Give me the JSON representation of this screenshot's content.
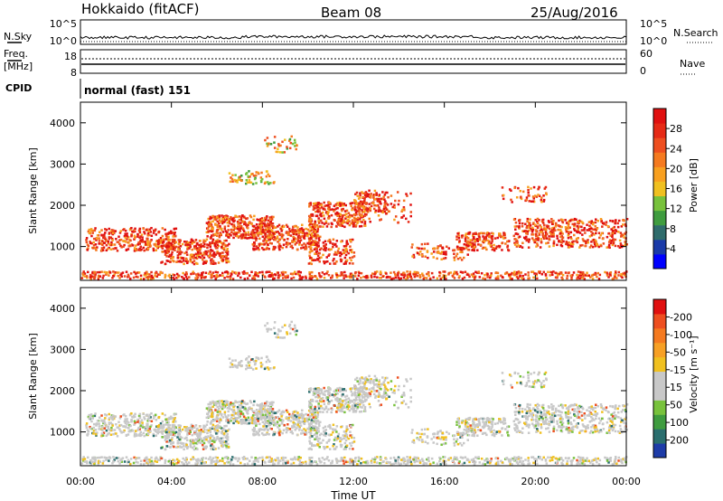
{
  "header": {
    "station": "Hokkaido (fitACF)",
    "beam": "Beam 08",
    "date": "25/Aug/2016"
  },
  "side_labels": {
    "nsky": "N.Sky",
    "freq_top": "Freq.",
    "freq_unit": "[MHz]",
    "cpid": "CPID",
    "nsearch": "N.Search",
    "nave": "Nave"
  },
  "cpid_text": "normal (fast) 151",
  "noise_axis": {
    "left_top": "10^5",
    "left_bottom": "10^0",
    "right_top": "10^5",
    "right_bottom": "10^0"
  },
  "freq_axis": {
    "left_top": "18",
    "left_bottom": "8",
    "right_top": "60",
    "right_bottom": "0"
  },
  "chart_data": [
    {
      "type": "heatmap",
      "panel": "power",
      "ylabel": "Slant Range [km]",
      "ylim": [
        180,
        4500
      ],
      "yticks": [
        1000,
        2000,
        3000,
        4000
      ],
      "xlim": [
        0,
        24
      ],
      "colorbar": {
        "label": "Power [dB]",
        "ticks": [
          "4",
          "8",
          "12",
          "16",
          "20",
          "24",
          "28"
        ],
        "colors": [
          "#0000ff",
          "#1a3aa8",
          "#2f6c6c",
          "#3f9c3f",
          "#78c23c",
          "#f0c020",
          "#f8a020",
          "#f57a20",
          "#ee4f20",
          "#e62a16",
          "#e01010"
        ]
      }
    },
    {
      "type": "heatmap",
      "panel": "velocity",
      "ylabel": "Slant Range [km]",
      "ylim": [
        180,
        4500
      ],
      "yticks": [
        1000,
        2000,
        3000,
        4000
      ],
      "xlim": [
        0,
        24
      ],
      "xticks": [
        "00:00",
        "04:00",
        "08:00",
        "12:00",
        "16:00",
        "20:00",
        "00:00"
      ],
      "xlabel": "Time UT",
      "colorbar": {
        "label": "Velocity [m s⁻¹]",
        "ticks": [
          "200",
          "100",
          "50",
          "15",
          "-15",
          "-50",
          "-100",
          "-200"
        ],
        "colors": [
          "#1e3ca8",
          "#2a6e6e",
          "#3f9c3f",
          "#78c23c",
          "#c8c8c8",
          "#c8c8c8",
          "#f0c020",
          "#f7a025",
          "#f57a20",
          "#ee4f20",
          "#e01010"
        ]
      }
    }
  ]
}
